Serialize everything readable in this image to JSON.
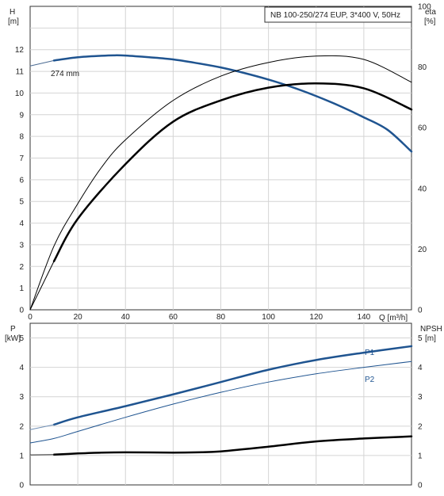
{
  "chart_data": [
    {
      "type": "line",
      "title": "NB 100-250/274 EUP, 3*400 V, 50Hz",
      "x_axis": {
        "label": "Q [m³/h]",
        "range": [
          0,
          160
        ],
        "ticks": [
          "0",
          "20",
          "40",
          "60",
          "80",
          "100",
          "120",
          "140"
        ]
      },
      "y_axis_left": {
        "label_line1": "H",
        "label_line2": "[m]",
        "range": [
          0,
          14
        ],
        "ticks": [
          "0",
          "1",
          "2",
          "3",
          "4",
          "5",
          "6",
          "7",
          "8",
          "9",
          "10",
          "11",
          "12"
        ]
      },
      "y_axis_right": {
        "label_line1": "eta",
        "label_line2": "[%]",
        "range": [
          0,
          100
        ],
        "ticks": [
          "0",
          "20",
          "40",
          "60",
          "80",
          "100"
        ]
      },
      "grid": true,
      "annotation": "274 mm",
      "series": [
        {
          "axis": "left",
          "color": "#4a6a92",
          "width": 1,
          "x": [
            0,
            10
          ],
          "y": [
            11.25,
            11.5
          ]
        },
        {
          "axis": "left",
          "color": "#1f5490",
          "width": 2.5,
          "x": [
            10,
            20,
            30,
            35,
            40,
            50,
            60,
            70,
            80,
            90,
            100,
            110,
            120,
            130,
            140,
            150,
            160
          ],
          "y": [
            11.5,
            11.65,
            11.72,
            11.74,
            11.73,
            11.65,
            11.55,
            11.38,
            11.18,
            10.92,
            10.62,
            10.27,
            9.86,
            9.4,
            8.88,
            8.3,
            7.3
          ]
        },
        {
          "axis": "right",
          "color": "#000000",
          "width": 1,
          "x": [
            0,
            10,
            20,
            30,
            40,
            60,
            80,
            100,
            120,
            140,
            160
          ],
          "y": [
            0,
            21,
            35,
            47,
            56,
            69,
            77,
            81.5,
            83.6,
            82.5,
            75
          ]
        },
        {
          "axis": "right",
          "color": "#000000",
          "width": 2.5,
          "x": [
            10,
            20,
            40,
            60,
            80,
            100,
            120,
            140,
            160
          ],
          "y": [
            16,
            30,
            48,
            62,
            69,
            73.2,
            74.6,
            73,
            66
          ]
        },
        {
          "axis": "right",
          "color": "#000000",
          "width": 1,
          "x": [
            0,
            10
          ],
          "y": [
            0,
            16
          ]
        }
      ]
    },
    {
      "type": "line",
      "x_axis": {
        "range": [
          0,
          160
        ]
      },
      "y_axis_left": {
        "label_line1": "P",
        "label_line2": "[kW]",
        "range": [
          0,
          5.5
        ],
        "ticks": [
          "0",
          "1",
          "2",
          "3",
          "4",
          "5"
        ]
      },
      "y_axis_right": {
        "label_line1": "NPSH",
        "label_line2": "[m]",
        "range": [
          0,
          5.5
        ],
        "ticks": [
          "0",
          "1",
          "2",
          "3",
          "4",
          "5"
        ]
      },
      "grid": true,
      "series": [
        {
          "name": "P1",
          "axis": "left",
          "color": "#1f5490",
          "width": 2.5,
          "x": [
            10,
            20,
            40,
            60,
            80,
            100,
            120,
            140,
            160
          ],
          "y": [
            2.05,
            2.3,
            2.68,
            3.08,
            3.5,
            3.92,
            4.25,
            4.5,
            4.72
          ]
        },
        {
          "axis": "left",
          "color": "#6f8fb5",
          "width": 1,
          "x": [
            0,
            10
          ],
          "y": [
            1.88,
            2.05
          ]
        },
        {
          "name": "P2",
          "axis": "left",
          "color": "#1f5490",
          "width": 1,
          "x": [
            0,
            10,
            20,
            40,
            60,
            80,
            100,
            120,
            140,
            160
          ],
          "y": [
            1.43,
            1.58,
            1.82,
            2.3,
            2.75,
            3.15,
            3.5,
            3.78,
            4.0,
            4.2
          ]
        },
        {
          "axis": "right",
          "color": "#000000",
          "width": 2.5,
          "x": [
            10,
            20,
            30,
            40,
            60,
            70,
            80,
            100,
            120,
            140,
            160
          ],
          "y": [
            1.03,
            1.07,
            1.1,
            1.11,
            1.1,
            1.11,
            1.14,
            1.3,
            1.48,
            1.58,
            1.65
          ]
        },
        {
          "axis": "right",
          "color": "#333333",
          "width": 1,
          "x": [
            0,
            10
          ],
          "y": [
            1.02,
            1.03
          ]
        }
      ]
    }
  ]
}
